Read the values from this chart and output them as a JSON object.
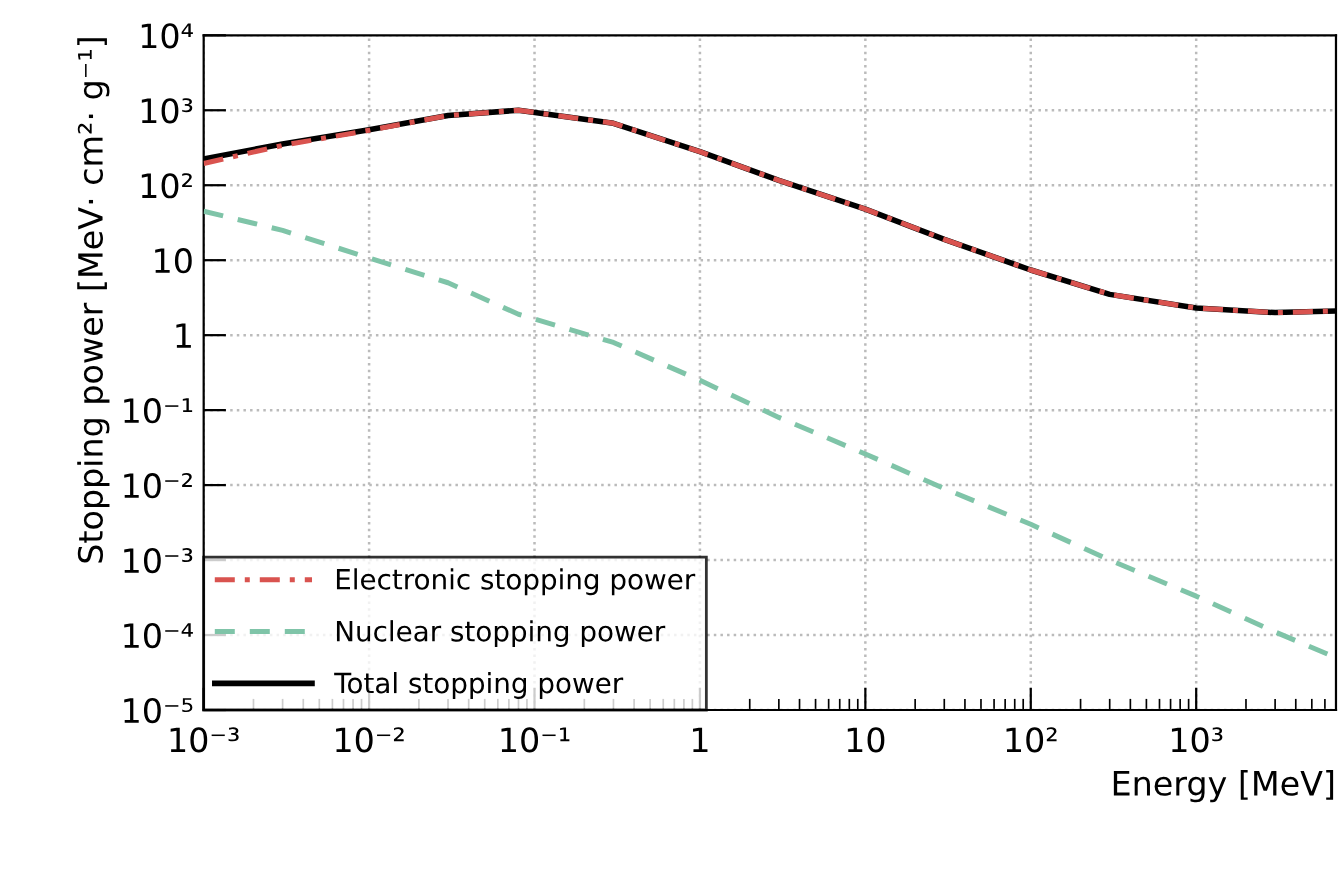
{
  "chart_data": {
    "type": "line",
    "xlabel": "Energy [MeV]",
    "ylabel": "Stopping power [MeV· cm²· g⁻¹]",
    "log": "xy",
    "grid": true,
    "legend": "bottom left",
    "xlim": [
      0.001,
      7000
    ],
    "ylim": [
      1e-05,
      10000
    ],
    "xticks": [
      {
        "value": 0.001,
        "label": "10⁻³"
      },
      {
        "value": 0.01,
        "label": "10⁻²"
      },
      {
        "value": 0.1,
        "label": "10⁻¹"
      },
      1,
      10,
      {
        "value": 100,
        "label": "10²"
      },
      {
        "value": 1000,
        "label": "10³"
      }
    ],
    "yticks": [
      {
        "value": 1e-05,
        "label": "10⁻⁵"
      },
      {
        "value": 0.0001,
        "label": "10⁻⁴"
      },
      {
        "value": 0.001,
        "label": "10⁻³"
      },
      {
        "value": 0.01,
        "label": "10⁻²"
      },
      {
        "value": 0.1,
        "label": "10⁻¹"
      },
      1,
      10,
      {
        "value": 100,
        "label": "10²"
      },
      {
        "value": 1000,
        "label": "10³"
      },
      {
        "value": 10000,
        "label": "10⁴"
      }
    ],
    "x": [
      0.001,
      0.003,
      0.01,
      0.03,
      0.08,
      0.3,
      1,
      3,
      10,
      30,
      100,
      300,
      1000,
      3000,
      7000
    ],
    "series": [
      {
        "name": "Electronic stopping power",
        "color": "#d9534f",
        "line_style": "dashdot",
        "values": [
          195,
          340,
          540,
          850,
          1000,
          670,
          280,
          116,
          48,
          19,
          7.4,
          3.5,
          2.3,
          2.0,
          2.1
        ]
      },
      {
        "name": "Nuclear stopping power",
        "color": "#7fc4a8",
        "line_style": "dashed",
        "values": [
          45,
          25,
          10.7,
          5,
          1.9,
          0.8,
          0.25,
          0.08,
          0.026,
          0.009,
          0.003,
          0.001,
          0.00033,
          0.00011,
          5e-05
        ]
      },
      {
        "name": "Total stopping power",
        "color": "#000000",
        "line_style": "solid",
        "values": [
          224,
          355,
          550,
          850,
          1000,
          670,
          280,
          116,
          48,
          19,
          7.4,
          3.5,
          2.3,
          2.0,
          2.1
        ]
      }
    ]
  }
}
